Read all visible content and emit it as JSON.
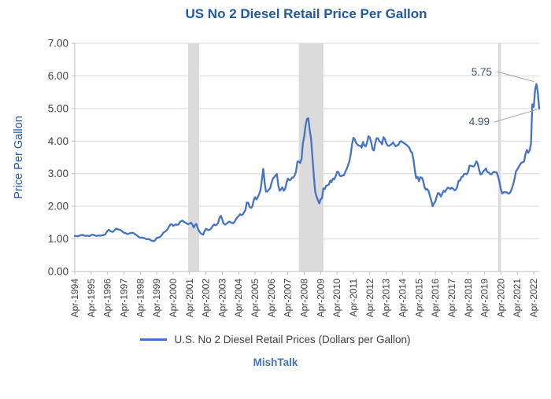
{
  "footer": "MishTalk",
  "colors": {
    "line": "#4472C4",
    "title": "#2159A4",
    "axis_title": "#2159A4",
    "band": "#DBDBDB",
    "grid": "#D9D9D9",
    "axis": "#BFBFBF",
    "tick_label": "#404040",
    "annotation": "#44546A",
    "connector": "#A6A6A6",
    "footer": "#4472C4",
    "legend_text": "#404040"
  },
  "chart_data": {
    "type": "line",
    "title": "US No 2 Diesel Retail Price Per Gallon",
    "ylabel": "Price Per Gallon",
    "xlabel": "",
    "legend": "U.S. No 2 Diesel Retail Prices (Dollars per Gallon)",
    "legend_position": "bottom",
    "grid": "horizontal",
    "ylim": [
      0,
      7
    ],
    "y_ticks": [
      "0.00",
      "1.00",
      "2.00",
      "3.00",
      "4.00",
      "5.00",
      "6.00",
      "7.00"
    ],
    "x_start": "Apr-1994",
    "x_end": "Aug-2022",
    "frequency": "monthly",
    "x_tick_labels": [
      "Apr-1994",
      "Apr-1995",
      "Apr-1996",
      "Apr-1997",
      "Apr-1998",
      "Apr-1999",
      "Apr-2000",
      "Apr-2001",
      "Apr-2002",
      "Apr-2003",
      "Apr-2004",
      "Apr-2005",
      "Apr-2006",
      "Apr-2007",
      "Apr-2008",
      "Apr-2009",
      "Apr-2010",
      "Apr-2011",
      "Apr-2012",
      "Apr-2013",
      "Apr-2014",
      "Apr-2015",
      "Apr-2016",
      "Apr-2017",
      "Apr-2018",
      "Apr-2019",
      "Apr-2020",
      "Apr-2021",
      "Apr-2022"
    ],
    "values": [
      1.09,
      1.09,
      1.08,
      1.09,
      1.11,
      1.12,
      1.12,
      1.1,
      1.09,
      1.1,
      1.09,
      1.09,
      1.12,
      1.13,
      1.12,
      1.1,
      1.09,
      1.1,
      1.1,
      1.1,
      1.11,
      1.12,
      1.13,
      1.18,
      1.25,
      1.28,
      1.24,
      1.22,
      1.22,
      1.26,
      1.31,
      1.31,
      1.29,
      1.28,
      1.26,
      1.22,
      1.19,
      1.18,
      1.16,
      1.15,
      1.17,
      1.18,
      1.19,
      1.18,
      1.15,
      1.12,
      1.09,
      1.05,
      1.04,
      1.04,
      1.03,
      1.02,
      1.0,
      0.99,
      1.0,
      0.98,
      0.95,
      0.94,
      0.93,
      0.97,
      1.03,
      1.04,
      1.05,
      1.08,
      1.14,
      1.2,
      1.22,
      1.25,
      1.3,
      1.38,
      1.44,
      1.45,
      1.4,
      1.42,
      1.45,
      1.43,
      1.44,
      1.52,
      1.55,
      1.56,
      1.52,
      1.5,
      1.47,
      1.45,
      1.47,
      1.5,
      1.45,
      1.35,
      1.42,
      1.46,
      1.33,
      1.24,
      1.18,
      1.15,
      1.13,
      1.24,
      1.31,
      1.29,
      1.27,
      1.29,
      1.33,
      1.4,
      1.44,
      1.42,
      1.44,
      1.5,
      1.65,
      1.71,
      1.59,
      1.47,
      1.44,
      1.46,
      1.5,
      1.53,
      1.51,
      1.49,
      1.48,
      1.53,
      1.6,
      1.66,
      1.7,
      1.76,
      1.73,
      1.75,
      1.82,
      1.9,
      2.12,
      2.11,
      1.98,
      1.95,
      2.0,
      2.18,
      2.28,
      2.21,
      2.28,
      2.38,
      2.5,
      2.81,
      3.15,
      2.73,
      2.45,
      2.45,
      2.51,
      2.55,
      2.71,
      2.85,
      2.89,
      2.95,
      2.99,
      2.63,
      2.48,
      2.52,
      2.58,
      2.48,
      2.53,
      2.72,
      2.85,
      2.8,
      2.81,
      2.88,
      2.88,
      2.95,
      3.07,
      3.37,
      3.38,
      3.33,
      3.45,
      3.93,
      4.14,
      4.5,
      4.68,
      4.7,
      4.33,
      4.07,
      3.52,
      2.93,
      2.45,
      2.3,
      2.19,
      2.09,
      2.22,
      2.25,
      2.55,
      2.53,
      2.63,
      2.64,
      2.67,
      2.79,
      2.74,
      2.85,
      2.83,
      2.92,
      3.06,
      3.05,
      2.94,
      2.92,
      2.95,
      2.95,
      3.05,
      3.14,
      3.25,
      3.38,
      3.58,
      3.91,
      4.1,
      4.05,
      3.94,
      3.89,
      3.86,
      3.86,
      3.8,
      3.97,
      3.86,
      3.84,
      3.96,
      4.15,
      4.11,
      3.96,
      3.75,
      3.71,
      3.95,
      4.09,
      4.09,
      3.99,
      3.97,
      3.9,
      4.12,
      4.07,
      3.94,
      3.87,
      3.85,
      3.88,
      3.91,
      3.96,
      3.89,
      3.84,
      3.87,
      3.89,
      3.98,
      4.0,
      3.96,
      3.94,
      3.91,
      3.88,
      3.84,
      3.79,
      3.68,
      3.64,
      3.41,
      3.09,
      2.86,
      2.9,
      2.77,
      2.89,
      2.88,
      2.79,
      2.6,
      2.51,
      2.53,
      2.47,
      2.32,
      2.18,
      2.0,
      2.09,
      2.15,
      2.31,
      2.41,
      2.39,
      2.3,
      2.38,
      2.48,
      2.44,
      2.51,
      2.57,
      2.56,
      2.53,
      2.57,
      2.54,
      2.49,
      2.51,
      2.6,
      2.78,
      2.79,
      2.89,
      2.91,
      2.99,
      3.0,
      2.98,
      3.06,
      3.25,
      3.24,
      3.23,
      3.22,
      3.27,
      3.38,
      3.31,
      3.13,
      2.98,
      2.99,
      3.07,
      3.11,
      3.16,
      3.05,
      3.04,
      2.99,
      2.98,
      3.03,
      3.06,
      3.04,
      3.04,
      2.9,
      2.73,
      2.51,
      2.39,
      2.43,
      2.43,
      2.43,
      2.4,
      2.39,
      2.44,
      2.55,
      2.68,
      2.85,
      3.07,
      3.13,
      3.21,
      3.28,
      3.34,
      3.35,
      3.38,
      3.61,
      3.73,
      3.64,
      3.72,
      3.92,
      5.13,
      5.05,
      5.57,
      5.75,
      5.49,
      4.99
    ],
    "recession_bands": [
      {
        "start_index": 83,
        "end_index": 91
      },
      {
        "start_index": 164,
        "end_index": 182
      },
      {
        "start_index": 310,
        "end_index": 312
      }
    ],
    "annotations": [
      {
        "text": "5.75",
        "point": "max"
      },
      {
        "text": "4.99",
        "point": "last"
      }
    ]
  }
}
